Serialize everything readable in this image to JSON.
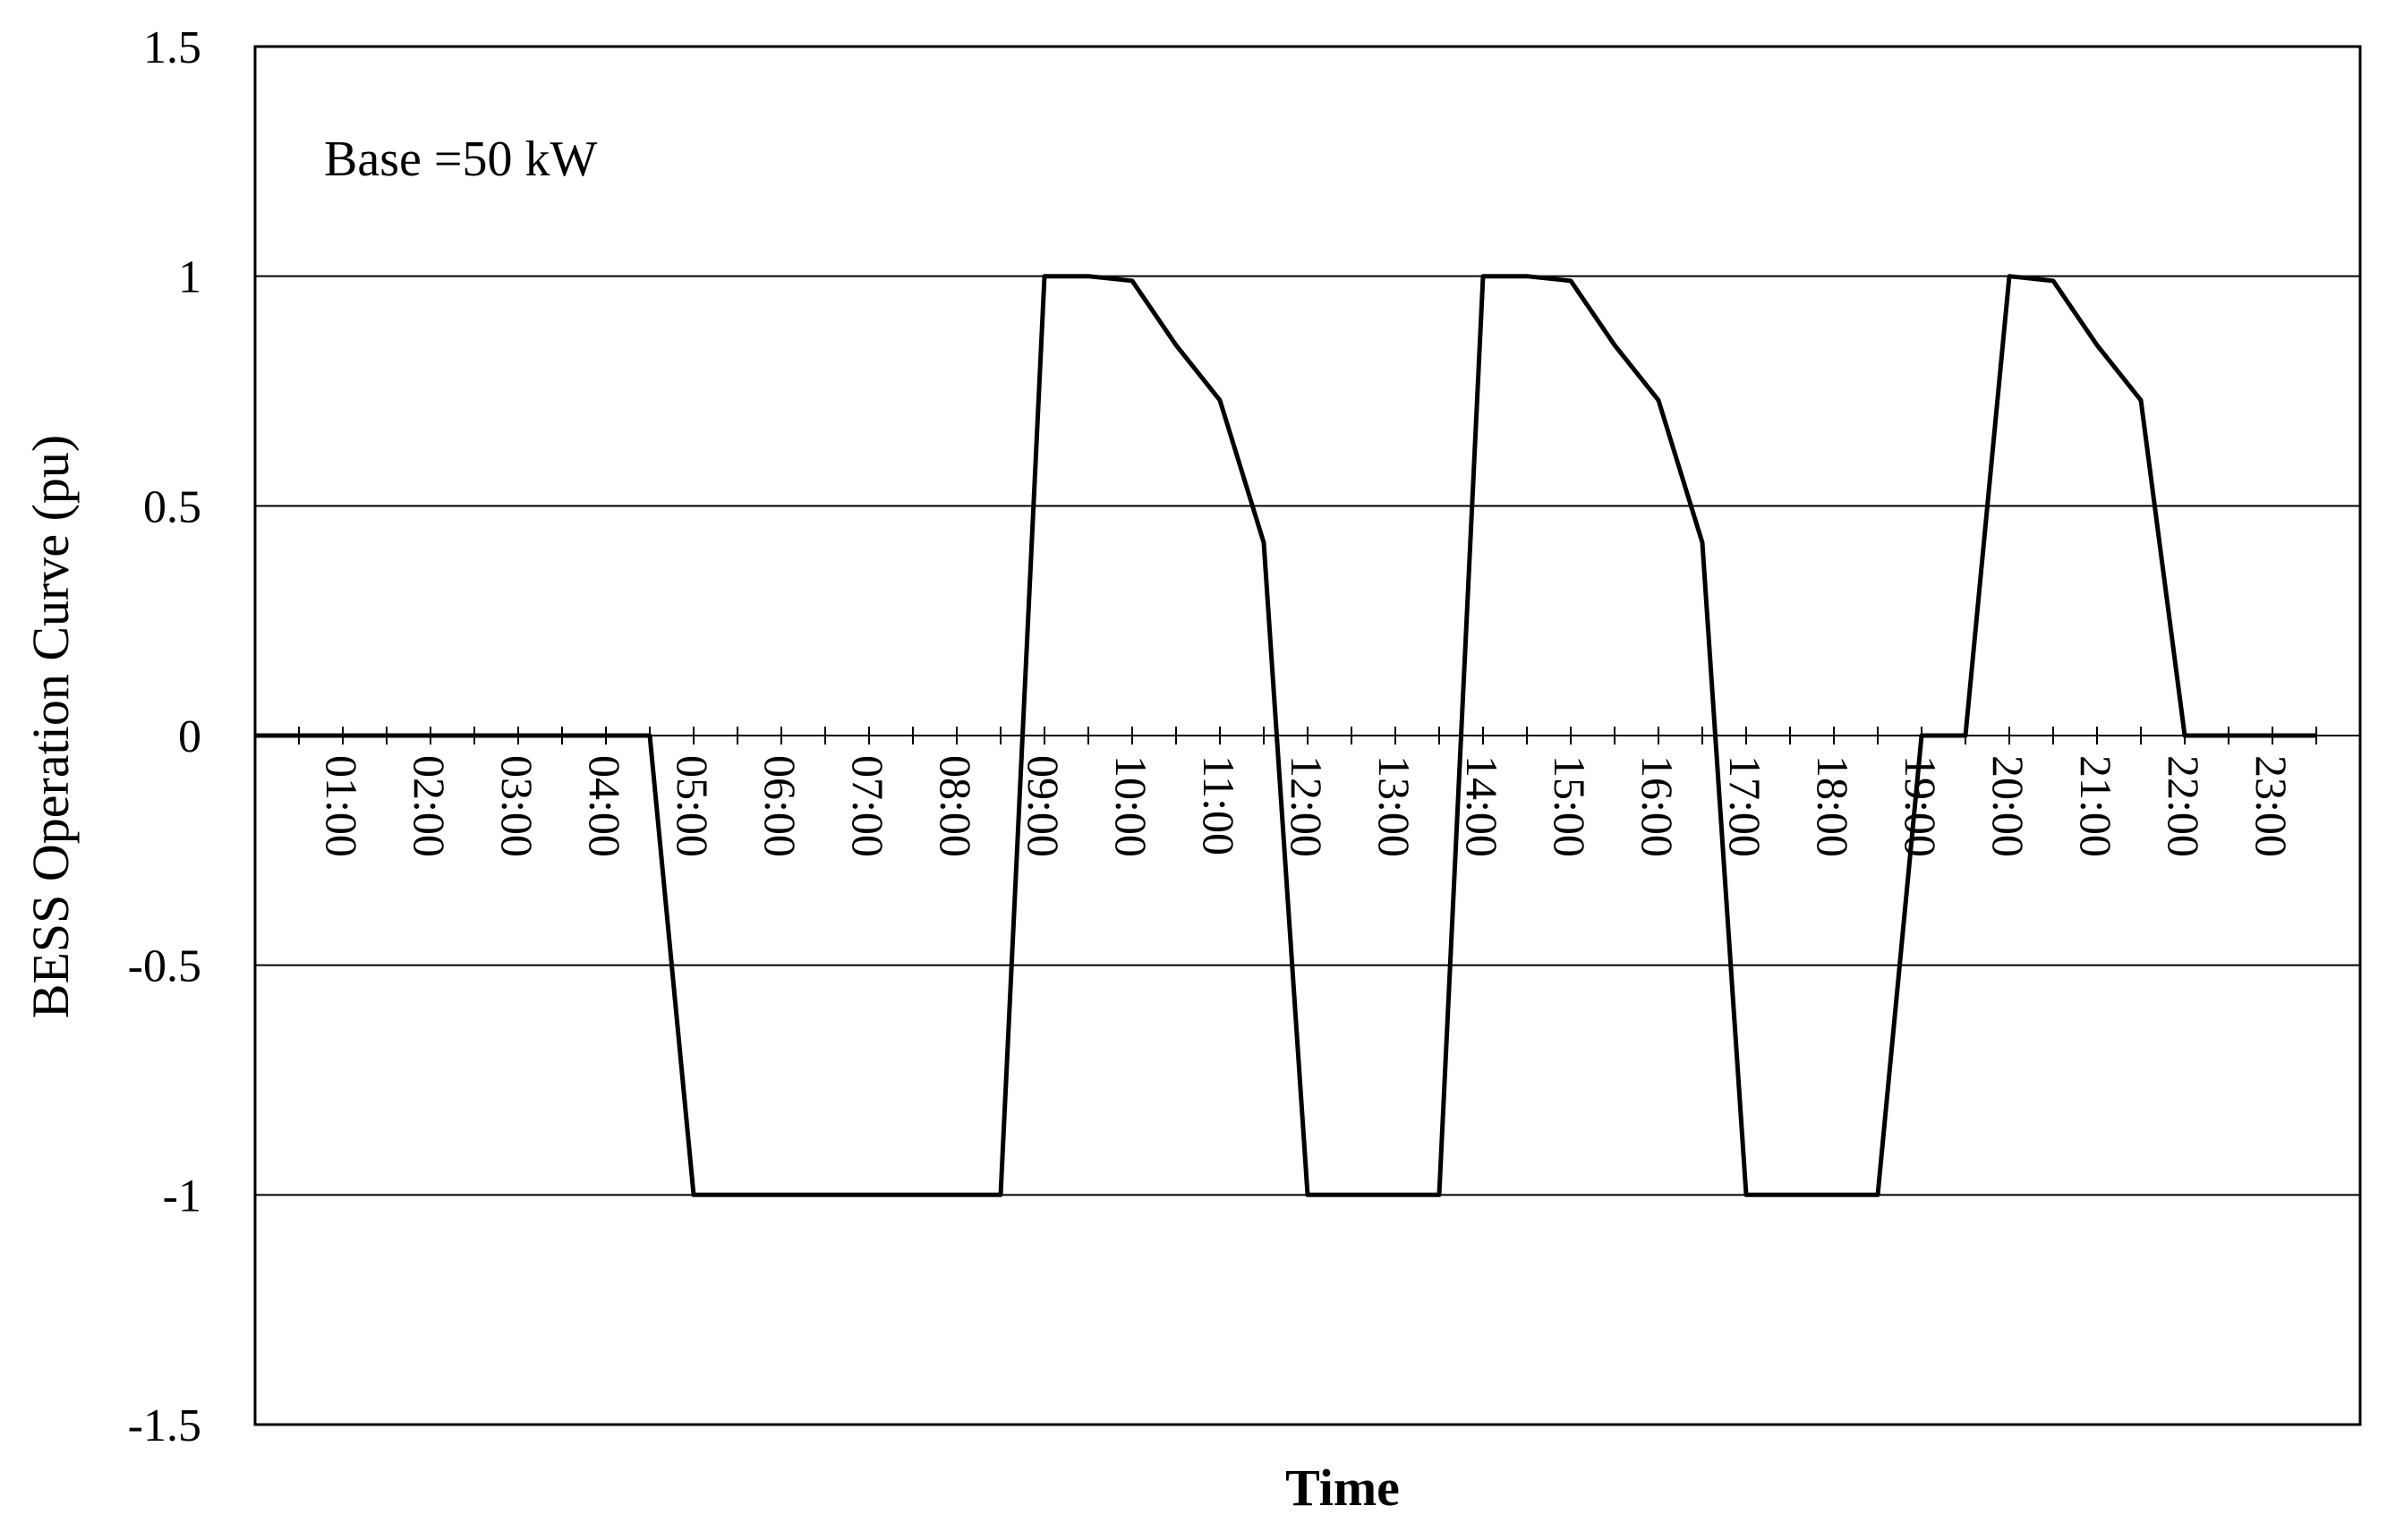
{
  "chart_data": {
    "type": "line",
    "title": "",
    "xlabel": "Time",
    "ylabel": "BESS Operation Curve (pu)",
    "annotation": "Base =50 kW",
    "ylim": [
      -1.5,
      1.5
    ],
    "xlim": [
      0,
      24
    ],
    "y_ticks": [
      "1.5",
      "1",
      "0.5",
      "0",
      "-0.5",
      "-1",
      "-1.5"
    ],
    "y_tick_values": [
      1.5,
      1,
      0.5,
      0,
      -0.5,
      -1,
      -1.5
    ],
    "x_tick_labels": [
      "01:00",
      "02:00",
      "03:00",
      "04:00",
      "05:00",
      "06:00",
      "07:00",
      "08:00",
      "09:00",
      "10:00",
      "11:00",
      "12:00",
      "13:00",
      "14:00",
      "15:00",
      "16:00",
      "17:00",
      "18:00",
      "19:00",
      "20:00",
      "21:00",
      "22:00",
      "23:00"
    ],
    "grid": "horizontal at major y ticks",
    "legend": "none",
    "line_color": "#000000",
    "series": [
      {
        "x": [
          0,
          4.5,
          5.0,
          8.5,
          9.0,
          9.5,
          10.0,
          10.5,
          11.0,
          11.5,
          12.0,
          13.5,
          14.0,
          14.5,
          15.0,
          15.5,
          16.0,
          16.5,
          17.0,
          18.5,
          19.0,
          19.5,
          20.0,
          20.5,
          21.0,
          21.5,
          22.0,
          23.5
        ],
        "y": [
          0,
          0,
          -1,
          -1,
          1,
          1,
          0.99,
          0.85,
          0.73,
          0.42,
          -1,
          -1,
          1,
          1,
          0.99,
          0.85,
          0.73,
          0.42,
          -1,
          -1,
          0,
          0,
          1,
          0.99,
          0.85,
          0.73,
          0,
          0
        ]
      }
    ]
  }
}
